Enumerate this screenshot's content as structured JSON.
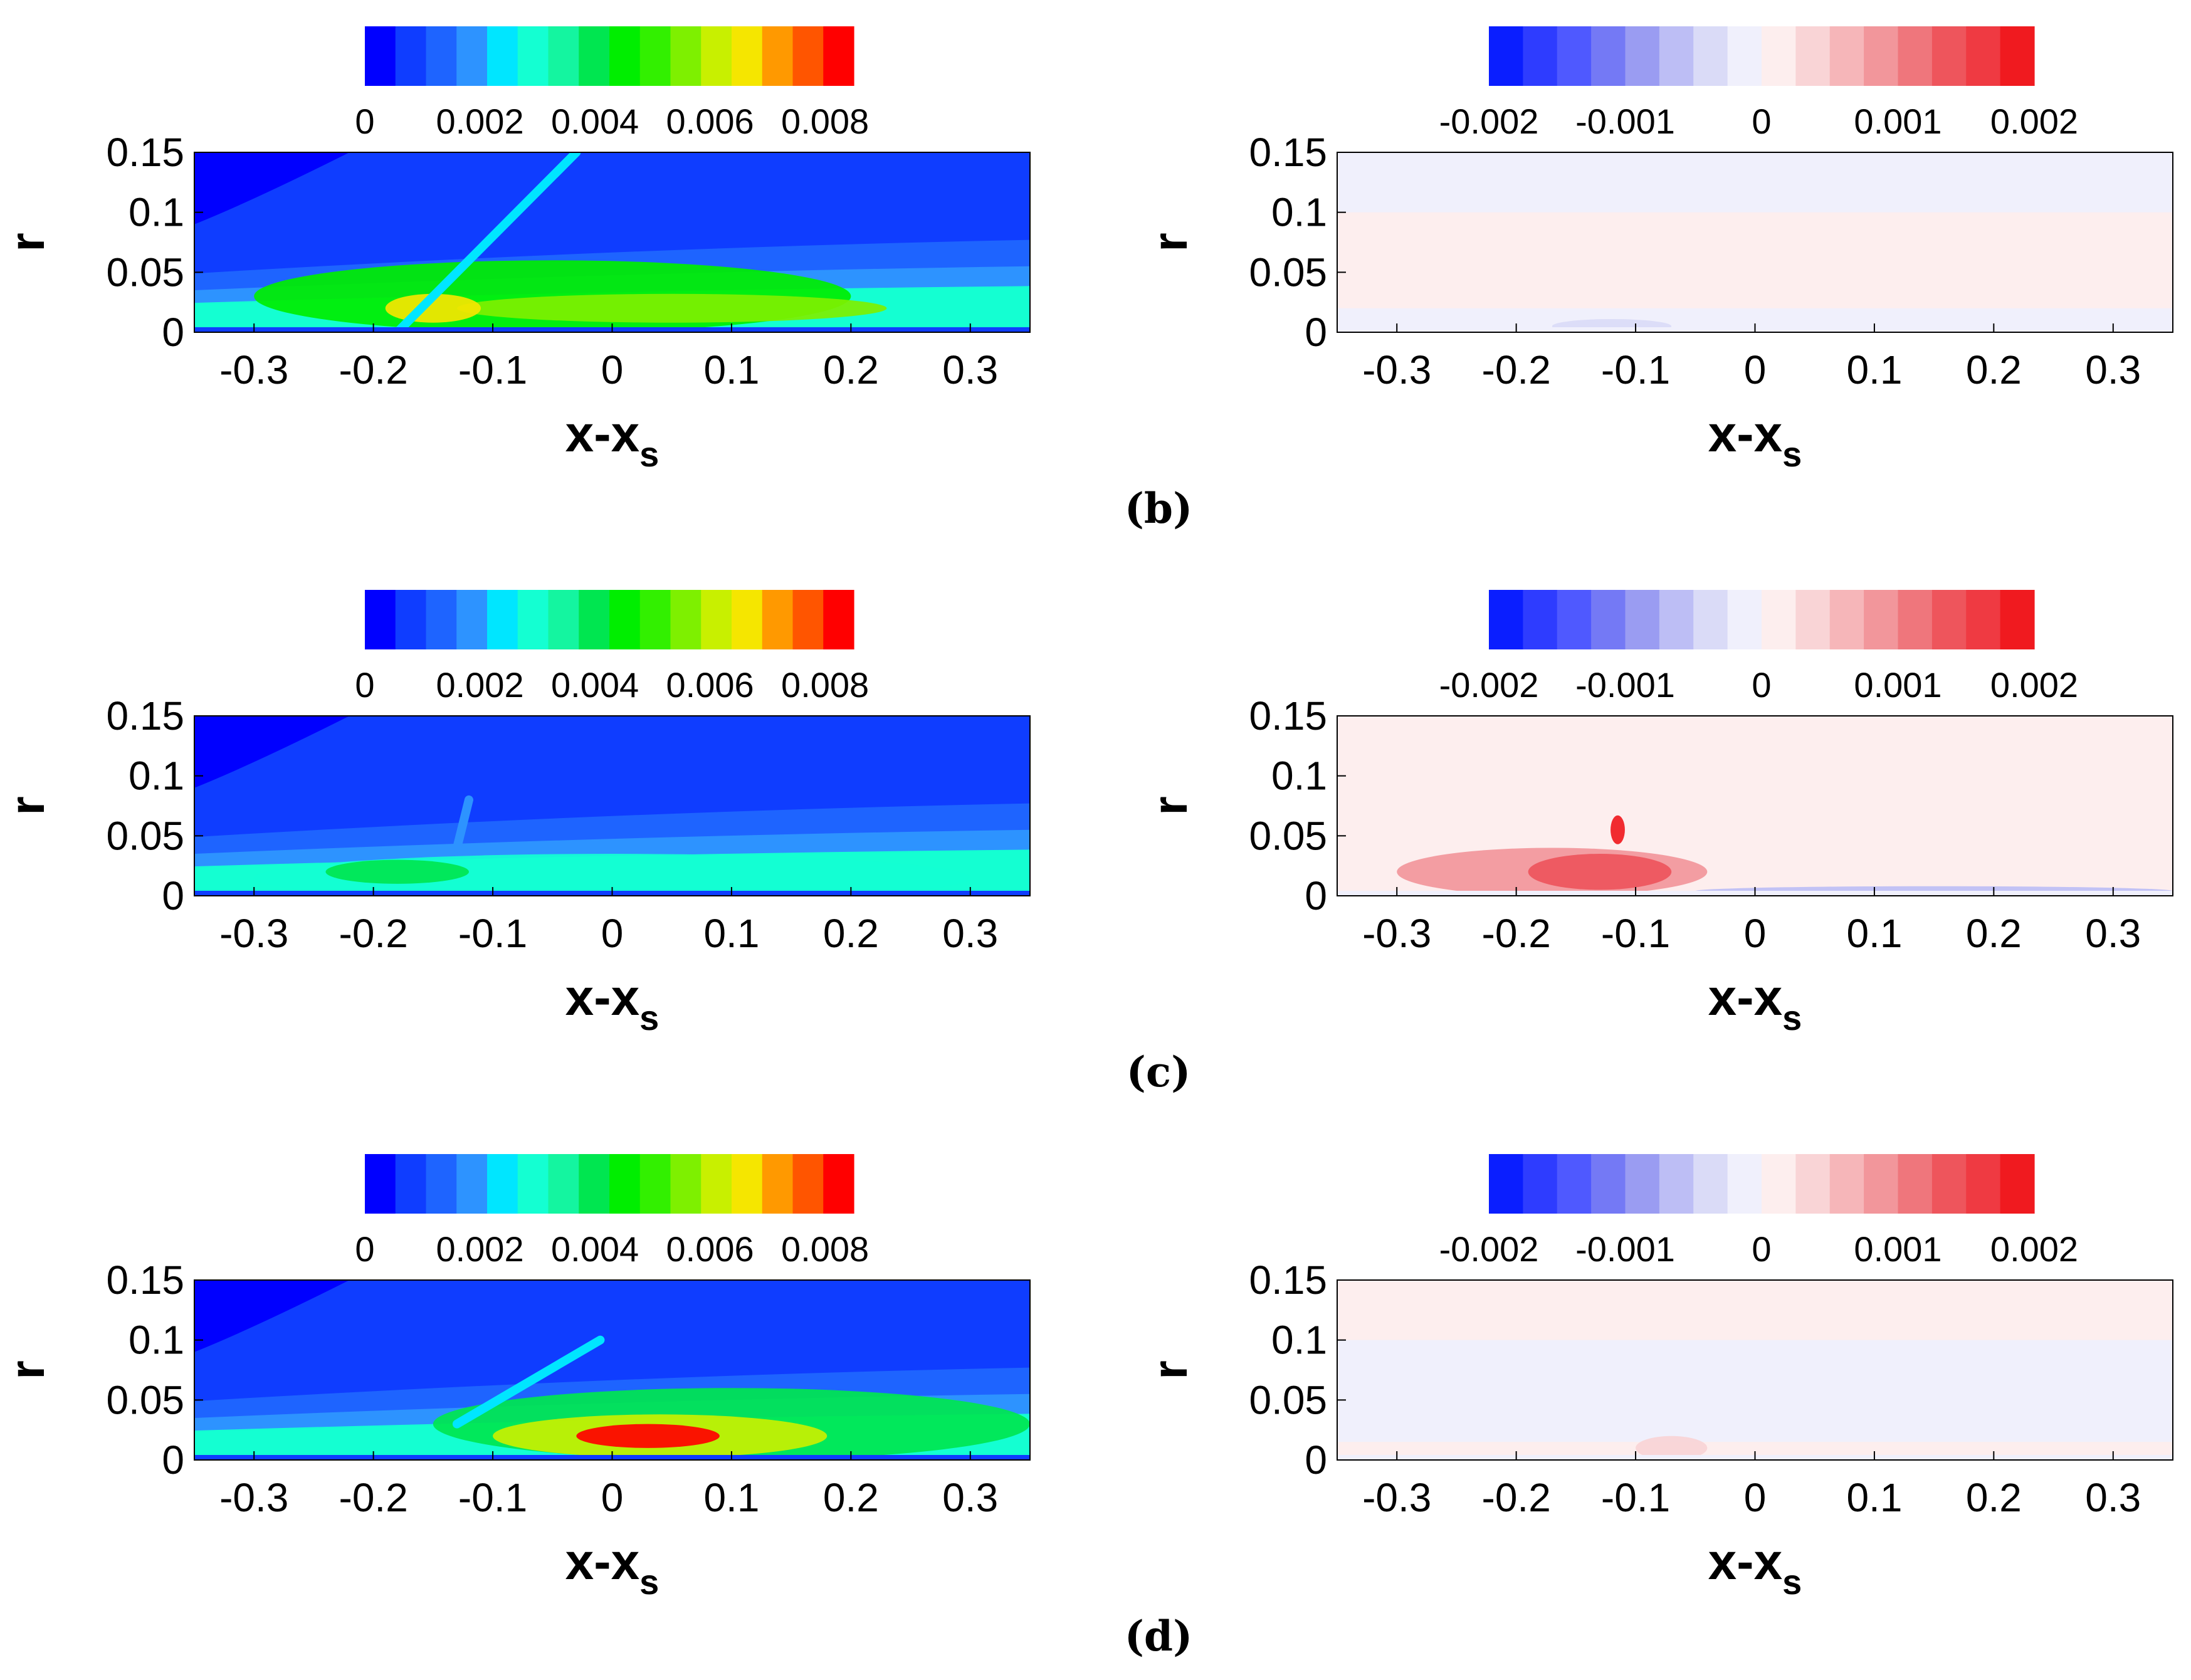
{
  "colors": {
    "rainbow": [
      "#0000ff",
      "#0f3dff",
      "#1e64ff",
      "#2d93ff",
      "#00e6ff",
      "#14ffd2",
      "#14f5a0",
      "#00e650",
      "#00ee00",
      "#32f000",
      "#7ef000",
      "#c8f000",
      "#f5e600",
      "#ff9900",
      "#ff5500",
      "#ff0000"
    ],
    "diverging": [
      "#0a1eff",
      "#2e3cff",
      "#4f59ff",
      "#7479f5",
      "#9a9cf2",
      "#bdbef5",
      "#dadbf7",
      "#f0f0fc",
      "#fdeeee",
      "#f9d4d6",
      "#f6b6b9",
      "#f2969b",
      "#ef767c",
      "#ee555c",
      "#ef3a42",
      "#f01a1f"
    ],
    "frame": "#000000"
  },
  "colorbars": {
    "rms": {
      "ticks": [
        "0",
        "0.002",
        "0.004",
        "0.006",
        "0.008"
      ]
    },
    "diff": {
      "ticks": [
        "-0.002",
        "-0.001",
        "0",
        "0.001",
        "0.002"
      ]
    }
  },
  "axes": {
    "xticks": [
      "-0.3",
      "-0.2",
      "-0.1",
      "0",
      "0.1",
      "0.2",
      "0.3"
    ],
    "yticks": [
      "0",
      "0.05",
      "0.1",
      "0.15"
    ],
    "ylabel": "r",
    "xlabel_main": "x-x",
    "xlabel_sub": "s"
  },
  "captions": [
    "(b)",
    "(c)",
    "(d)"
  ],
  "chart_data": [
    {
      "panel": "b-left",
      "type": "heatmap",
      "colormap": "rainbow",
      "xlim": [
        -0.35,
        0.35
      ],
      "ylim": [
        0,
        0.15
      ],
      "colorbar": {
        "range": [
          0,
          0.0085
        ],
        "ticks": [
          0,
          0.002,
          0.004,
          0.006,
          0.008
        ]
      },
      "features": [
        {
          "kind": "blob",
          "x": -0.05,
          "y": 0.03,
          "rx": 0.25,
          "ry": 0.03,
          "level": 8
        },
        {
          "kind": "blob",
          "x": 0.05,
          "y": 0.02,
          "rx": 0.18,
          "ry": 0.012,
          "level": 10
        },
        {
          "kind": "blob",
          "x": -0.15,
          "y": 0.02,
          "rx": 0.04,
          "ry": 0.012,
          "level": 12
        },
        {
          "kind": "shock",
          "x0": -0.18,
          "y0": 0.0,
          "x1": -0.03,
          "y1": 0.15,
          "level": 4
        }
      ]
    },
    {
      "panel": "b-right",
      "type": "heatmap",
      "colormap": "diverging",
      "xlim": [
        -0.35,
        0.35
      ],
      "ylim": [
        0,
        0.15
      ],
      "colorbar": {
        "range": [
          -0.002,
          0.002
        ],
        "ticks": [
          -0.002,
          -0.001,
          0,
          0.001,
          0.002
        ]
      },
      "features": [
        {
          "kind": "band",
          "y0": 0.02,
          "y1": 0.1,
          "level": 8
        },
        {
          "kind": "band",
          "y0": 0.1,
          "y1": 0.15,
          "level": 7
        },
        {
          "kind": "band",
          "y0": 0.0,
          "y1": 0.02,
          "level": 7
        },
        {
          "kind": "blob",
          "x": -0.12,
          "y": 0.005,
          "rx": 0.05,
          "ry": 0.006,
          "level": 6
        }
      ]
    },
    {
      "panel": "c-left",
      "type": "heatmap",
      "colormap": "rainbow",
      "xlim": [
        -0.35,
        0.35
      ],
      "ylim": [
        0,
        0.15
      ],
      "colorbar": {
        "range": [
          0,
          0.0085
        ],
        "ticks": [
          0,
          0.002,
          0.004,
          0.006,
          0.008
        ]
      },
      "features": [
        {
          "kind": "blob",
          "x": 0.0,
          "y": 0.015,
          "rx": 0.3,
          "ry": 0.02,
          "level": 5
        },
        {
          "kind": "blob",
          "x": -0.18,
          "y": 0.02,
          "rx": 0.06,
          "ry": 0.01,
          "level": 7
        },
        {
          "kind": "shock",
          "x0": -0.13,
          "y0": 0.04,
          "x1": -0.12,
          "y1": 0.08,
          "level": 3
        }
      ]
    },
    {
      "panel": "c-right",
      "type": "heatmap",
      "colormap": "diverging",
      "xlim": [
        -0.35,
        0.35
      ],
      "ylim": [
        0,
        0.15
      ],
      "colorbar": {
        "range": [
          -0.002,
          0.002
        ],
        "ticks": [
          -0.002,
          -0.001,
          0,
          0.001,
          0.002
        ]
      },
      "features": [
        {
          "kind": "band",
          "y0": 0.0,
          "y1": 0.15,
          "level": 8
        },
        {
          "kind": "blob",
          "x": -0.17,
          "y": 0.02,
          "rx": 0.13,
          "ry": 0.02,
          "level": 11
        },
        {
          "kind": "blob",
          "x": -0.13,
          "y": 0.02,
          "rx": 0.06,
          "ry": 0.015,
          "level": 13
        },
        {
          "kind": "blob",
          "x": -0.115,
          "y": 0.055,
          "rx": 0.006,
          "ry": 0.012,
          "level": 15
        },
        {
          "kind": "blob",
          "x": 0.15,
          "y": 0.004,
          "rx": 0.2,
          "ry": 0.004,
          "level": 5
        }
      ]
    },
    {
      "panel": "d-left",
      "type": "heatmap",
      "colormap": "rainbow",
      "xlim": [
        -0.35,
        0.35
      ],
      "ylim": [
        0,
        0.15
      ],
      "colorbar": {
        "range": [
          0,
          0.0085
        ],
        "ticks": [
          0,
          0.002,
          0.004,
          0.006,
          0.008
        ]
      },
      "features": [
        {
          "kind": "blob",
          "x": 0.1,
          "y": 0.03,
          "rx": 0.25,
          "ry": 0.03,
          "level": 7
        },
        {
          "kind": "blob",
          "x": 0.04,
          "y": 0.02,
          "rx": 0.14,
          "ry": 0.018,
          "level": 11
        },
        {
          "kind": "blob",
          "x": 0.03,
          "y": 0.02,
          "rx": 0.06,
          "ry": 0.01,
          "level": 15
        },
        {
          "kind": "shock",
          "x0": -0.13,
          "y0": 0.03,
          "x1": -0.01,
          "y1": 0.1,
          "level": 4
        }
      ]
    },
    {
      "panel": "d-right",
      "type": "heatmap",
      "colormap": "diverging",
      "xlim": [
        -0.35,
        0.35
      ],
      "ylim": [
        0,
        0.15
      ],
      "colorbar": {
        "range": [
          -0.002,
          0.002
        ],
        "ticks": [
          -0.002,
          -0.001,
          0,
          0.001,
          0.002
        ]
      },
      "features": [
        {
          "kind": "band",
          "y0": 0.015,
          "y1": 0.15,
          "level": 7
        },
        {
          "kind": "band",
          "y0": 0.1,
          "y1": 0.15,
          "level": 8
        },
        {
          "kind": "band",
          "y0": 0.0,
          "y1": 0.015,
          "level": 8
        },
        {
          "kind": "blob",
          "x": -0.07,
          "y": 0.01,
          "rx": 0.03,
          "ry": 0.01,
          "level": 9
        }
      ]
    }
  ]
}
